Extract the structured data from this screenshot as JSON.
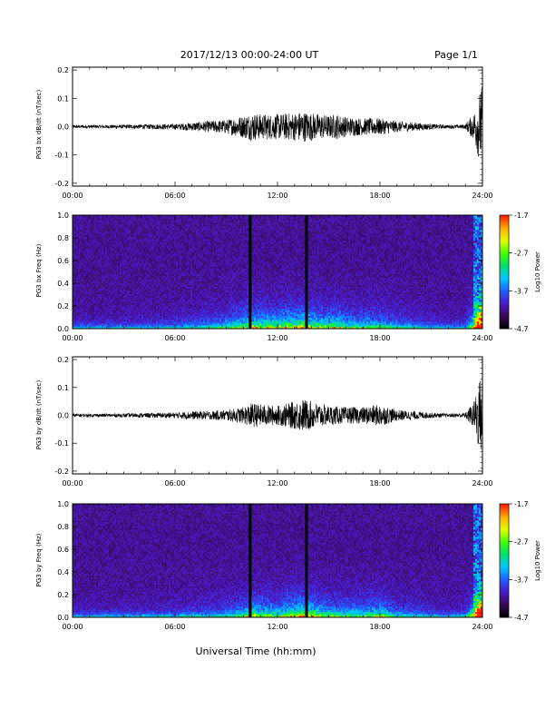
{
  "header": {
    "title": "2017/12/13  00:00-24:00 UT",
    "page": "Page 1/1"
  },
  "footer": {
    "xlabel": "Universal Time (hh:mm)"
  },
  "colorbar": {
    "label": "Log10 Power",
    "ticks": [
      "-1.7",
      "-2.7",
      "-3.7",
      "-4.7"
    ],
    "range": [
      -4.7,
      -1.7
    ],
    "colors": [
      "#000000",
      "#3a0a5a",
      "#4a1ac8",
      "#2060ff",
      "#00c8ff",
      "#00e070",
      "#40ff00",
      "#e0ff00",
      "#ffb000",
      "#ff2000"
    ]
  },
  "chart_data": [
    {
      "type": "line",
      "title": "",
      "xlabel": "",
      "ylabel": "PG3 bx dB/dt (nT/sec)",
      "xlim": [
        0,
        24
      ],
      "ylim": [
        -0.21,
        0.21
      ],
      "xticks": [
        "00:00",
        "06:00",
        "12:00",
        "18:00",
        "24:00"
      ],
      "yticks": [
        "-0.2",
        "-0.1",
        "0.0",
        "0.1",
        "0.2"
      ],
      "series": [
        {
          "values": [
            [
              0,
              0.006
            ],
            [
              2,
              0.006
            ],
            [
              4,
              0.008
            ],
            [
              6,
              0.01
            ],
            [
              7,
              0.015
            ],
            [
              8,
              0.02
            ],
            [
              9,
              0.025
            ],
            [
              10,
              0.04
            ],
            [
              10.5,
              0.05
            ],
            [
              11,
              0.045
            ],
            [
              12,
              0.045
            ],
            [
              13,
              0.05
            ],
            [
              13.5,
              0.055
            ],
            [
              14,
              0.05
            ],
            [
              15,
              0.04
            ],
            [
              15.5,
              0.045
            ],
            [
              16,
              0.035
            ],
            [
              17,
              0.03
            ],
            [
              18,
              0.03
            ],
            [
              19,
              0.02
            ],
            [
              20,
              0.015
            ],
            [
              21,
              0.01
            ],
            [
              22,
              0.006
            ],
            [
              23,
              0.008
            ],
            [
              23.5,
              0.05
            ],
            [
              23.8,
              0.12
            ],
            [
              24,
              0.15
            ]
          ]
        }
      ]
    },
    {
      "type": "heatmap",
      "title": "",
      "xlabel": "",
      "ylabel": "PG3 bx Freq (Hz)",
      "xlim": [
        0,
        24
      ],
      "ylim": [
        0,
        1.0
      ],
      "xticks": [
        "00:00",
        "06:00",
        "12:00",
        "18:00",
        "24:00"
      ],
      "yticks": [
        "0.0",
        "0.2",
        "0.4",
        "0.6",
        "0.8",
        "1.0"
      ],
      "gaps_hours": [
        10.4,
        13.7
      ]
    },
    {
      "type": "line",
      "title": "",
      "xlabel": "",
      "ylabel": "PG3 by dB/dt (nT/sec)",
      "xlim": [
        0,
        24
      ],
      "ylim": [
        -0.21,
        0.21
      ],
      "xticks": [
        "00:00",
        "06:00",
        "12:00",
        "18:00",
        "24:00"
      ],
      "yticks": [
        "-0.2",
        "-0.1",
        "0.0",
        "0.1",
        "0.2"
      ],
      "series": [
        {
          "values": [
            [
              0,
              0.006
            ],
            [
              2,
              0.006
            ],
            [
              4,
              0.008
            ],
            [
              6,
              0.01
            ],
            [
              7,
              0.015
            ],
            [
              8,
              0.015
            ],
            [
              9,
              0.02
            ],
            [
              10,
              0.03
            ],
            [
              10.5,
              0.045
            ],
            [
              11,
              0.04
            ],
            [
              12,
              0.035
            ],
            [
              13,
              0.05
            ],
            [
              13.5,
              0.06
            ],
            [
              14,
              0.05
            ],
            [
              15,
              0.035
            ],
            [
              16,
              0.03
            ],
            [
              17,
              0.03
            ],
            [
              18,
              0.04
            ],
            [
              19,
              0.02
            ],
            [
              20,
              0.015
            ],
            [
              21,
              0.01
            ],
            [
              22,
              0.006
            ],
            [
              23,
              0.01
            ],
            [
              23.5,
              0.05
            ],
            [
              23.8,
              0.13
            ],
            [
              24,
              0.14
            ]
          ]
        }
      ]
    },
    {
      "type": "heatmap",
      "title": "",
      "xlabel": "",
      "ylabel": "PG3 by Freq (Hz)",
      "xlim": [
        0,
        24
      ],
      "ylim": [
        0,
        1.0
      ],
      "xticks": [
        "00:00",
        "06:00",
        "12:00",
        "18:00",
        "24:00"
      ],
      "yticks": [
        "0.0",
        "0.2",
        "0.4",
        "0.6",
        "0.8",
        "1.0"
      ],
      "gaps_hours": [
        10.4,
        13.7
      ]
    }
  ]
}
